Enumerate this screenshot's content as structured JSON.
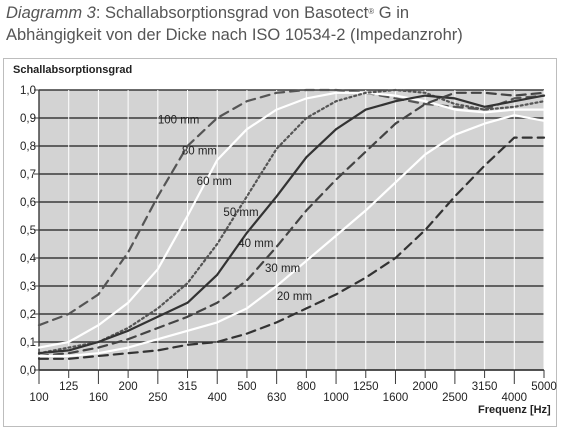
{
  "caption": {
    "label": "Diagramm 3",
    "title_part1": ": Schallabsorptionsgrad von Basotect",
    "trademark": "®",
    "title_part2": " G in",
    "title_line2": "Abhängigkeit von der Dicke nach ISO 10534-2 (Impedanzrohr)"
  },
  "chart_data": {
    "type": "line",
    "ylabel": "Schallabsorptionsgrad",
    "xlabel": "Frequenz [Hz]",
    "ylim": [
      0,
      1.0
    ],
    "y_ticks": [
      "0,0",
      "0,1",
      "0,2",
      "0,3",
      "0,4",
      "0,5",
      "0,6",
      "0,7",
      "0,8",
      "0,9",
      "1,0"
    ],
    "x_scale": "log",
    "categories": [
      "100",
      "125",
      "160",
      "200",
      "250",
      "315",
      "400",
      "500",
      "630",
      "800",
      "1000",
      "1250",
      "1600",
      "2000",
      "2500",
      "3150",
      "4000",
      "5000"
    ],
    "x_tick_rows": [
      "lower",
      "upper",
      "lower",
      "upper",
      "lower",
      "upper",
      "lower",
      "upper",
      "lower",
      "upper",
      "lower",
      "upper",
      "lower",
      "upper",
      "lower",
      "upper",
      "lower",
      "upper"
    ],
    "grid": true,
    "background": "#d3d3d3",
    "series": [
      {
        "name": "100 mm",
        "style": "dashed",
        "color": "#555555",
        "values": [
          0.16,
          0.2,
          0.27,
          0.42,
          0.62,
          0.8,
          0.9,
          0.96,
          0.99,
          1.0,
          1.0,
          0.99,
          0.97,
          0.95,
          0.94,
          0.93,
          0.97,
          0.98
        ]
      },
      {
        "name": "80 mm",
        "style": "solid",
        "color": "#ffffff",
        "values": [
          0.08,
          0.1,
          0.16,
          0.24,
          0.36,
          0.55,
          0.75,
          0.86,
          0.93,
          0.97,
          0.99,
          0.99,
          0.98,
          0.96,
          0.93,
          0.92,
          0.93,
          0.93
        ]
      },
      {
        "name": "60 mm",
        "style": "dotted",
        "color": "#555555",
        "values": [
          0.06,
          0.08,
          0.1,
          0.15,
          0.22,
          0.31,
          0.45,
          0.62,
          0.79,
          0.9,
          0.96,
          0.99,
          1.0,
          0.99,
          0.95,
          0.93,
          0.94,
          0.96
        ]
      },
      {
        "name": "50 mm",
        "style": "solid",
        "color": "#333333",
        "values": [
          0.06,
          0.07,
          0.1,
          0.14,
          0.19,
          0.24,
          0.34,
          0.49,
          0.62,
          0.76,
          0.86,
          0.93,
          0.96,
          0.98,
          0.97,
          0.94,
          0.96,
          0.98
        ]
      },
      {
        "name": "40 mm",
        "style": "dashed",
        "color": "#444444",
        "values": [
          0.05,
          0.06,
          0.08,
          0.11,
          0.15,
          0.19,
          0.24,
          0.32,
          0.44,
          0.57,
          0.68,
          0.78,
          0.88,
          0.95,
          0.99,
          0.99,
          0.98,
          0.99
        ]
      },
      {
        "name": "30 mm",
        "style": "solid",
        "color": "#ffffff",
        "values": [
          0.05,
          0.05,
          0.06,
          0.08,
          0.11,
          0.14,
          0.17,
          0.22,
          0.3,
          0.39,
          0.48,
          0.57,
          0.67,
          0.77,
          0.84,
          0.88,
          0.91,
          0.89
        ]
      },
      {
        "name": "20 mm",
        "style": "dashed",
        "color": "#333333",
        "values": [
          0.04,
          0.04,
          0.05,
          0.06,
          0.07,
          0.09,
          0.1,
          0.13,
          0.17,
          0.22,
          0.27,
          0.33,
          0.4,
          0.5,
          0.62,
          0.73,
          0.83,
          0.83
        ]
      }
    ]
  }
}
